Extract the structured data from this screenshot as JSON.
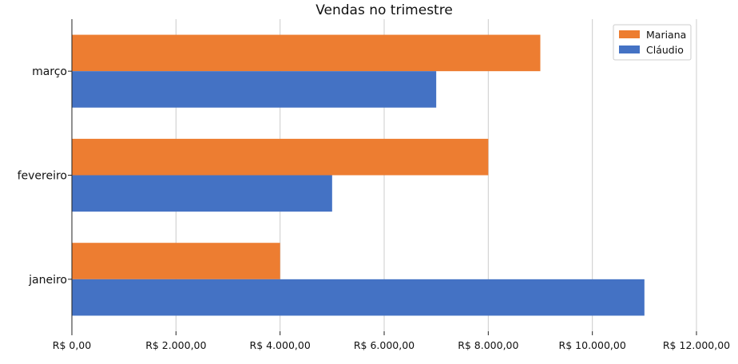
{
  "chart_data": {
    "type": "bar",
    "orientation": "horizontal",
    "title": "Vendas no trimestre",
    "xlabel": "",
    "ylabel": "",
    "categories": [
      "janeiro",
      "fevereiro",
      "março"
    ],
    "series": [
      {
        "name": "Mariana",
        "color": "#ed7d31",
        "values": [
          4000,
          8000,
          9000
        ]
      },
      {
        "name": "Cláudio",
        "color": "#4472c4",
        "values": [
          11000,
          5000,
          7000
        ]
      }
    ],
    "xlim": [
      0,
      12000
    ],
    "xticks": [
      0,
      2000,
      4000,
      6000,
      8000,
      10000,
      12000
    ],
    "xtick_labels": [
      "R$ 0,00",
      "R$ 2.000,00",
      "R$ 4.000,00",
      "R$ 6.000,00",
      "R$ 8.000,00",
      "R$ 10.000,00",
      "R$ 12.000,00"
    ],
    "grid": "vertical",
    "legend": "top-right"
  }
}
